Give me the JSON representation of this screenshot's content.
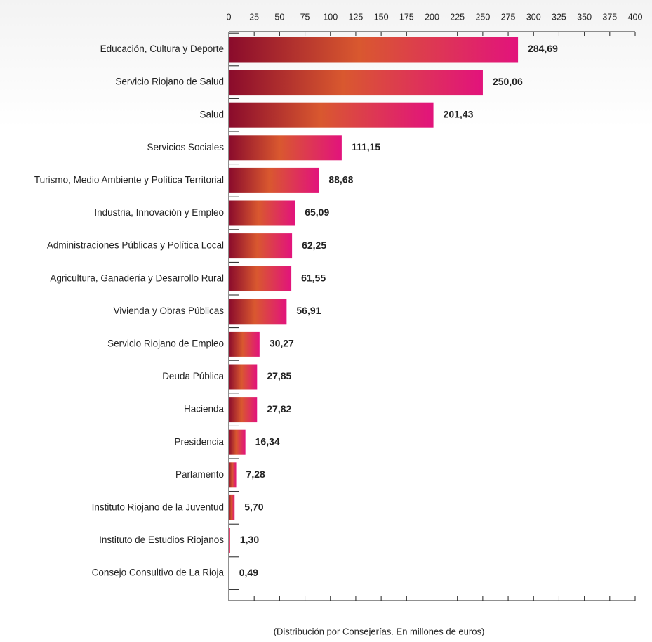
{
  "chart_data": {
    "type": "bar",
    "orientation": "horizontal",
    "caption": "(Distribución por Consejerías. En millones de euros)",
    "categories": [
      "Educación, Cultura y Deporte",
      "Servicio Riojano de Salud",
      "Salud",
      "Servicios Sociales",
      "Turismo, Medio Ambiente y Política Territorial",
      "Industria, Innovación y Empleo",
      "Administraciones Públicas y Política Local",
      "Agricultura, Ganadería y Desarrollo Rural",
      "Vivienda y Obras Públicas",
      "Servicio Riojano de Empleo",
      "Deuda Pública",
      "Hacienda",
      "Presidencia",
      "Parlamento",
      "Instituto Riojano de la Juventud",
      "Instituto de Estudios Riojanos",
      "Consejo Consultivo de La Rioja"
    ],
    "values": [
      284.69,
      250.06,
      201.43,
      111.15,
      88.68,
      65.09,
      62.25,
      61.55,
      56.91,
      30.27,
      27.85,
      27.82,
      16.34,
      7.28,
      5.7,
      1.3,
      0.49
    ],
    "value_labels": [
      "284,69",
      "250,06",
      "201,43",
      "111,15",
      "88,68",
      "65,09",
      "62,25",
      "61,55",
      "56,91",
      "30,27",
      "27,85",
      "27,82",
      "16,34",
      "7,28",
      "5,70",
      "1,30",
      "0,49"
    ],
    "colors": [
      "#8a0b2c",
      "#d9582f",
      "#e2137c"
    ],
    "xlim": [
      0,
      400
    ],
    "xticks": [
      0,
      25,
      50,
      75,
      100,
      125,
      150,
      175,
      200,
      225,
      250,
      275,
      300,
      325,
      350,
      375,
      400
    ]
  }
}
